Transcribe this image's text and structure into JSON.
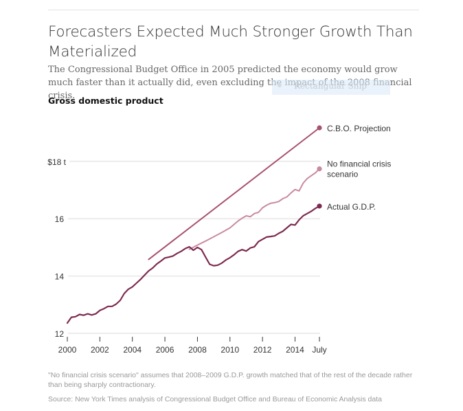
{
  "header": {
    "title": "Forecasters Expected Much Stronger Growth Than Materialized",
    "subtitle": "The Congressional Budget Office in 2005 predicted the economy would grow much faster than it actually did, even excluding the impact of the 2008 financial crisis.",
    "overlay_tooltip": "Rectangular Snip"
  },
  "footer": {
    "note": "\"No financial crisis scenario\" assumes that 2008–2009 G.D.P. growth matched that of the rest of the decade rather than being sharply contractionary.",
    "source": "Source: New York Times analysis of Congressional Budget Office and Bureau of Economic Analysis data"
  },
  "colors": {
    "cbo": "#a8506f",
    "no_crisis": "#c98aa0",
    "actual": "#7d2a4e",
    "grid": "#ececec",
    "tick": "#333333"
  },
  "chart_data": {
    "type": "line",
    "title": "Gross domestic product",
    "xlabel": "",
    "ylabel": "",
    "x_ticks": [
      {
        "value": 2000,
        "label": "2000"
      },
      {
        "value": 2002,
        "label": "2002"
      },
      {
        "value": 2004,
        "label": "2004"
      },
      {
        "value": 2006,
        "label": "2006"
      },
      {
        "value": 2008,
        "label": "2008"
      },
      {
        "value": 2010,
        "label": "2010"
      },
      {
        "value": 2012,
        "label": "2012"
      },
      {
        "value": 2014,
        "label": "2014"
      },
      {
        "value": 2015.5,
        "label": "July"
      }
    ],
    "y_ticks": [
      {
        "value": 12,
        "label": "12"
      },
      {
        "value": 14,
        "label": "14"
      },
      {
        "value": 16,
        "label": "16"
      },
      {
        "value": 18,
        "label": "$18 t"
      }
    ],
    "xlim": [
      2000,
      2015.5
    ],
    "ylim": [
      12,
      19.2
    ],
    "grid": true,
    "legend": "end-of-line labels, right",
    "series": [
      {
        "name": "C.B.O. Projection",
        "key": "cbo",
        "x": [
          2005.0,
          2015.5
        ],
        "values": [
          14.58,
          19.17
        ]
      },
      {
        "name": "No financial crisis scenario",
        "key": "no_crisis",
        "x": [
          2007.5,
          2008.0,
          2008.5,
          2009.0,
          2009.5,
          2010.0,
          2010.25,
          2010.5,
          2010.75,
          2011.0,
          2011.25,
          2011.5,
          2011.75,
          2012.0,
          2012.25,
          2012.5,
          2012.75,
          2013.0,
          2013.25,
          2013.5,
          2013.75,
          2014.0,
          2014.25,
          2014.5,
          2014.75,
          2015.0,
          2015.25,
          2015.5
        ],
        "values": [
          14.93,
          15.08,
          15.22,
          15.37,
          15.52,
          15.68,
          15.8,
          15.92,
          16.02,
          16.1,
          16.07,
          16.18,
          16.22,
          16.38,
          16.47,
          16.54,
          16.56,
          16.6,
          16.7,
          16.76,
          16.9,
          17.02,
          16.97,
          17.24,
          17.4,
          17.5,
          17.6,
          17.74
        ]
      },
      {
        "name": "Actual G.D.P.",
        "key": "actual",
        "x": [
          2000.0,
          2000.25,
          2000.5,
          2000.75,
          2001.0,
          2001.25,
          2001.5,
          2001.75,
          2002.0,
          2002.25,
          2002.5,
          2002.75,
          2003.0,
          2003.25,
          2003.5,
          2003.75,
          2004.0,
          2004.25,
          2004.5,
          2004.75,
          2005.0,
          2005.25,
          2005.5,
          2005.75,
          2006.0,
          2006.25,
          2006.5,
          2006.75,
          2007.0,
          2007.25,
          2007.5,
          2007.75,
          2008.0,
          2008.25,
          2008.5,
          2008.75,
          2009.0,
          2009.25,
          2009.5,
          2009.75,
          2010.0,
          2010.25,
          2010.5,
          2010.75,
          2011.0,
          2011.25,
          2011.5,
          2011.75,
          2012.0,
          2012.25,
          2012.5,
          2012.75,
          2013.0,
          2013.25,
          2013.5,
          2013.75,
          2014.0,
          2014.25,
          2014.5,
          2014.75,
          2015.0,
          2015.25,
          2015.5
        ],
        "values": [
          12.36,
          12.56,
          12.58,
          12.66,
          12.63,
          12.68,
          12.64,
          12.68,
          12.8,
          12.86,
          12.94,
          12.94,
          13.02,
          13.15,
          13.39,
          13.54,
          13.62,
          13.75,
          13.88,
          14.03,
          14.18,
          14.28,
          14.42,
          14.52,
          14.63,
          14.66,
          14.7,
          14.79,
          14.86,
          14.96,
          15.02,
          14.9,
          15.0,
          14.92,
          14.66,
          14.41,
          14.36,
          14.38,
          14.45,
          14.56,
          14.64,
          14.74,
          14.86,
          14.92,
          14.87,
          14.98,
          15.02,
          15.2,
          15.28,
          15.36,
          15.38,
          15.4,
          15.49,
          15.56,
          15.68,
          15.8,
          15.78,
          15.96,
          16.1,
          16.18,
          16.26,
          16.36,
          16.44
        ]
      }
    ],
    "series_labels": [
      {
        "key": "cbo",
        "lines": [
          "C.B.O. Projection"
        ]
      },
      {
        "key": "no_crisis",
        "lines": [
          "No financial crisis",
          "scenario"
        ]
      },
      {
        "key": "actual",
        "lines": [
          "Actual G.D.P."
        ]
      }
    ]
  }
}
